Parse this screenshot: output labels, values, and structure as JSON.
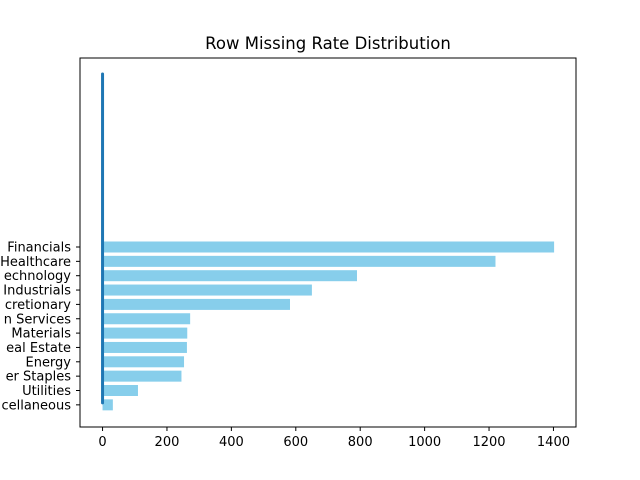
{
  "chart_data": {
    "type": "bar",
    "orientation": "horizontal",
    "title": "Row Missing Rate Distribution",
    "xlabel": "",
    "ylabel": "",
    "categories": [
      "Financials",
      "Healthcare",
      "Technology",
      "Industrials",
      "Consumer Discretionary",
      "Communication Services",
      "Materials",
      "Real Estate",
      "Energy",
      "Consumer Staples",
      "Utilities",
      "Miscellaneous"
    ],
    "visible_category_labels": [
      "Financials",
      "Healthcare",
      "echnology",
      "Industrials",
      "cretionary",
      "n Services",
      "Materials",
      "eal Estate",
      "Energy",
      "er Staples",
      "Utilities",
      "cellaneous"
    ],
    "values": [
      1402,
      1220,
      790,
      650,
      582,
      272,
      263,
      262,
      253,
      245,
      110,
      32
    ],
    "overlay_line": {
      "x": 0,
      "y_from": "Miscellaneous",
      "y_to": "above top bar",
      "color": "#1f77b4"
    },
    "xlim": [
      -70,
      1470
    ],
    "xticks": [
      0,
      200,
      400,
      600,
      800,
      1000,
      1200,
      1400
    ],
    "bar_color": "#87ceeb",
    "grid": false,
    "legend": "none"
  }
}
